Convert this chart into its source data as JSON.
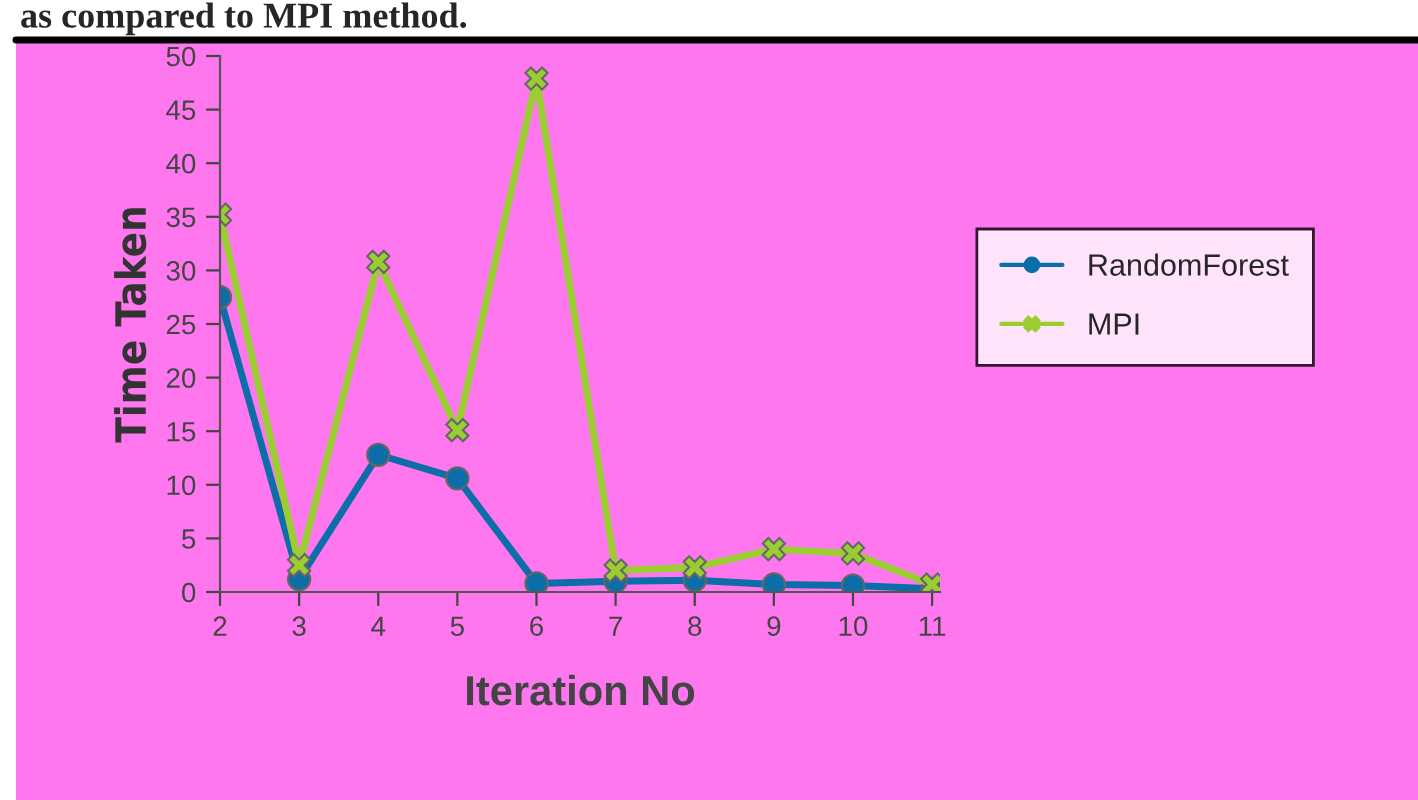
{
  "chart_data": {
    "type": "line",
    "xlabel": "Iteration No",
    "ylabel": "Time Taken",
    "annotations": [
      "as compared to MPI method."
    ],
    "categories": [
      "2",
      "3",
      "4",
      "5",
      "6",
      "7",
      "8",
      "9",
      "10",
      "11"
    ],
    "series": [
      {
        "name": "RandomForest",
        "color": "#0b6ea8",
        "marker": "circle",
        "values": [
          27.5,
          1.2,
          12.8,
          10.6,
          0.8,
          1.0,
          1.1,
          0.7,
          0.6,
          0.3
        ]
      },
      {
        "name": "MPI",
        "color": "#9acd32",
        "marker": "cross",
        "values": [
          35.2,
          2.5,
          30.8,
          15.1,
          47.9,
          2.0,
          2.3,
          4.0,
          3.6,
          0.7
        ]
      }
    ],
    "ylim": [
      0,
      50
    ],
    "yticks": [
      0,
      5,
      10,
      15,
      20,
      25,
      30,
      35,
      40,
      45,
      50
    ],
    "grid": false,
    "legend": "right",
    "line_style": "solid"
  }
}
